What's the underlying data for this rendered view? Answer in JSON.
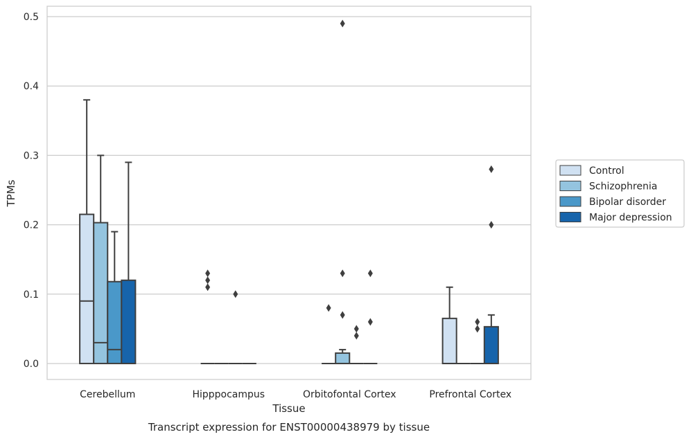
{
  "chart_data": {
    "type": "box",
    "caption": "Transcript expression for ENST00000438979 by tissue",
    "xlabel": "Tissue",
    "ylabel": "TPMs",
    "ylim": [
      -0.023,
      0.515
    ],
    "yticks": [
      0.0,
      0.1,
      0.2,
      0.3,
      0.4,
      0.5
    ],
    "ytick_labels": [
      "0.0",
      "0.1",
      "0.2",
      "0.3",
      "0.4",
      "0.5"
    ],
    "grid": "horizontal",
    "legend_position": "right",
    "categories": [
      "Cerebellum",
      "Hipppocampus",
      "Orbitofontal Cortex",
      "Prefrontal Cortex"
    ],
    "series": [
      {
        "name": "Control",
        "color": "#d0e1f2",
        "boxes": [
          {
            "q1": 0.0,
            "median": 0.09,
            "q3": 0.215,
            "whisker_low": 0.0,
            "whisker_high": 0.38,
            "outliers": []
          },
          {
            "q1": 0.0,
            "median": 0.0,
            "q3": 0.0,
            "whisker_low": 0.0,
            "whisker_high": 0.0,
            "outliers": [
              0.11,
              0.12,
              0.13
            ]
          },
          {
            "q1": 0.0,
            "median": 0.0,
            "q3": 0.0,
            "whisker_low": 0.0,
            "whisker_high": 0.0,
            "outliers": [
              0.08
            ]
          },
          {
            "q1": 0.0,
            "median": 0.0,
            "q3": 0.065,
            "whisker_low": 0.0,
            "whisker_high": 0.11,
            "outliers": []
          }
        ]
      },
      {
        "name": "Schizophrenia",
        "color": "#94c4df",
        "boxes": [
          {
            "q1": 0.0,
            "median": 0.03,
            "q3": 0.203,
            "whisker_low": 0.0,
            "whisker_high": 0.3,
            "outliers": []
          },
          {
            "q1": 0.0,
            "median": 0.0,
            "q3": 0.0,
            "whisker_low": 0.0,
            "whisker_high": 0.0,
            "outliers": []
          },
          {
            "q1": 0.0,
            "median": 0.0,
            "q3": 0.015,
            "whisker_low": 0.0,
            "whisker_high": 0.02,
            "outliers": [
              0.07,
              0.13,
              0.49
            ]
          },
          {
            "q1": 0.0,
            "median": 0.0,
            "q3": 0.0,
            "whisker_low": 0.0,
            "whisker_high": 0.0,
            "outliers": []
          }
        ]
      },
      {
        "name": "Bipolar disorder",
        "color": "#4a98c9",
        "boxes": [
          {
            "q1": 0.0,
            "median": 0.02,
            "q3": 0.118,
            "whisker_low": 0.0,
            "whisker_high": 0.19,
            "outliers": []
          },
          {
            "q1": 0.0,
            "median": 0.0,
            "q3": 0.0,
            "whisker_low": 0.0,
            "whisker_high": 0.0,
            "outliers": [
              0.1
            ]
          },
          {
            "q1": 0.0,
            "median": 0.0,
            "q3": 0.0,
            "whisker_low": 0.0,
            "whisker_high": 0.0,
            "outliers": [
              0.04,
              0.05
            ]
          },
          {
            "q1": 0.0,
            "median": 0.0,
            "q3": 0.0,
            "whisker_low": 0.0,
            "whisker_high": 0.0,
            "outliers": [
              0.05,
              0.06
            ]
          }
        ]
      },
      {
        "name": "Major depression",
        "color": "#1764ab",
        "boxes": [
          {
            "q1": 0.0,
            "median": 0.0,
            "q3": 0.12,
            "whisker_low": 0.0,
            "whisker_high": 0.29,
            "outliers": []
          },
          {
            "q1": 0.0,
            "median": 0.0,
            "q3": 0.0,
            "whisker_low": 0.0,
            "whisker_high": 0.0,
            "outliers": []
          },
          {
            "q1": 0.0,
            "median": 0.0,
            "q3": 0.0,
            "whisker_low": 0.0,
            "whisker_high": 0.0,
            "outliers": [
              0.06,
              0.13
            ]
          },
          {
            "q1": 0.0,
            "median": 0.0,
            "q3": 0.053,
            "whisker_low": 0.0,
            "whisker_high": 0.07,
            "outliers": [
              0.2,
              0.28
            ]
          }
        ]
      }
    ]
  }
}
